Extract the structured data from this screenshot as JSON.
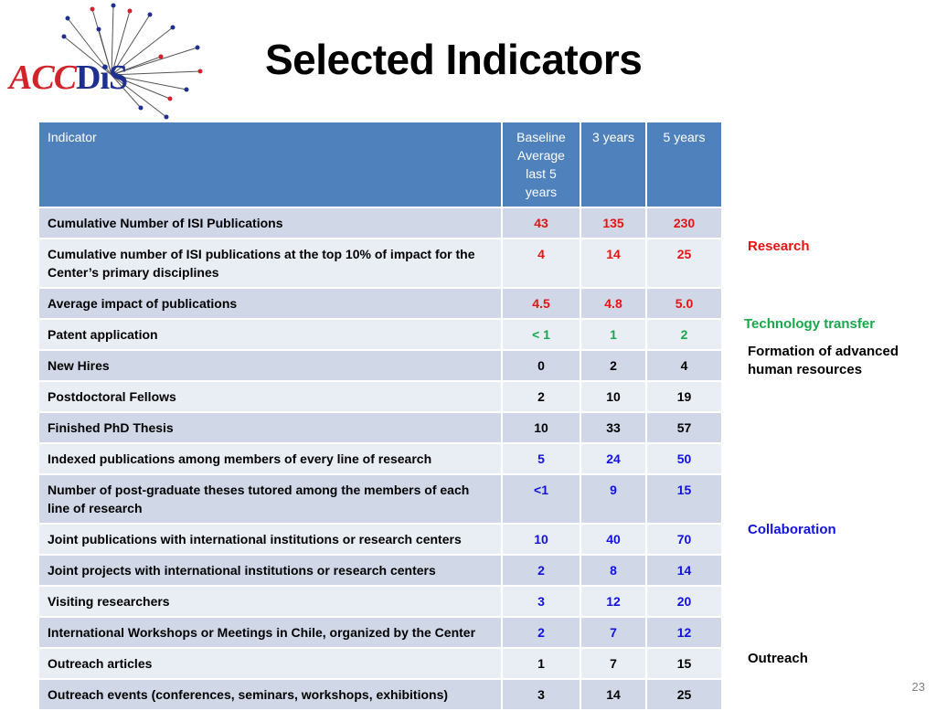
{
  "slide": {
    "title": "Selected Indicators",
    "page_number": "23"
  },
  "logo": {
    "text_acc": "ACC",
    "text_dis": "DiS",
    "colors": {
      "acc": "#d2232a",
      "dis": "#1f2f8f"
    }
  },
  "table": {
    "columns": [
      "Indicator",
      "Baseline Average last 5 years",
      "3 years",
      "5 years"
    ],
    "rows": [
      {
        "indicator": "Cumulative Number of ISI Publications",
        "baseline": "43",
        "y3": "135",
        "y5": "230",
        "color": "red"
      },
      {
        "indicator": "Cumulative number of ISI publications at the top 10% of impact for the Center’s primary disciplines",
        "baseline": "4",
        "y3": "14",
        "y5": "25",
        "color": "red"
      },
      {
        "indicator": "Average impact of publications",
        "baseline": "4.5",
        "y3": "4.8",
        "y5": "5.0",
        "color": "red"
      },
      {
        "indicator": "Patent application",
        "baseline": "< 1",
        "y3": "1",
        "y5": "2",
        "color": "green"
      },
      {
        "indicator": "New Hires",
        "baseline": "0",
        "y3": "2",
        "y5": "4",
        "color": "black"
      },
      {
        "indicator": "Postdoctoral Fellows",
        "baseline": "2",
        "y3": "10",
        "y5": "19",
        "color": "black"
      },
      {
        "indicator": "Finished PhD Thesis",
        "baseline": "10",
        "y3": "33",
        "y5": "57",
        "color": "black"
      },
      {
        "indicator": "Indexed publications among members of every line of research",
        "baseline": "5",
        "y3": "24",
        "y5": "50",
        "color": "blue"
      },
      {
        "indicator": "Number of post-graduate theses tutored among the members of each line of research",
        "baseline": "<1",
        "y3": "9",
        "y5": "15",
        "color": "blue"
      },
      {
        "indicator": "Joint publications with international institutions or research centers",
        "baseline": "10",
        "y3": "40",
        "y5": "70",
        "color": "blue"
      },
      {
        "indicator": "Joint projects with international institutions or research centers",
        "baseline": "2",
        "y3": "8",
        "y5": "14",
        "color": "blue"
      },
      {
        "indicator": "Visiting researchers",
        "baseline": "3",
        "y3": "12",
        "y5": "20",
        "color": "blue"
      },
      {
        "indicator": "International Workshops or Meetings in Chile, organized by the Center",
        "baseline": "2",
        "y3": "7",
        "y5": "12",
        "color": "blue"
      },
      {
        "indicator": "Outreach articles",
        "baseline": "1",
        "y3": "7",
        "y5": "15",
        "color": "black"
      },
      {
        "indicator": "Outreach events (conferences, seminars, workshops, exhibitions)",
        "baseline": "3",
        "y3": "14",
        "y5": "25",
        "color": "black"
      }
    ]
  },
  "categories": {
    "research": {
      "label": "Research",
      "color": "#e8130f"
    },
    "tech_transfer": {
      "label": "Technology transfer",
      "color": "#18a84a"
    },
    "human_resources": {
      "label": "Formation of advanced human resources",
      "color": "#000000"
    },
    "collaboration": {
      "label": "Collaboration",
      "color": "#1212e0"
    },
    "outreach": {
      "label": "Outreach",
      "color": "#000000"
    }
  },
  "colors": {
    "header_bg": "#4f81bd",
    "row_dark": "#d0d8e8",
    "row_light": "#e9edf4"
  }
}
